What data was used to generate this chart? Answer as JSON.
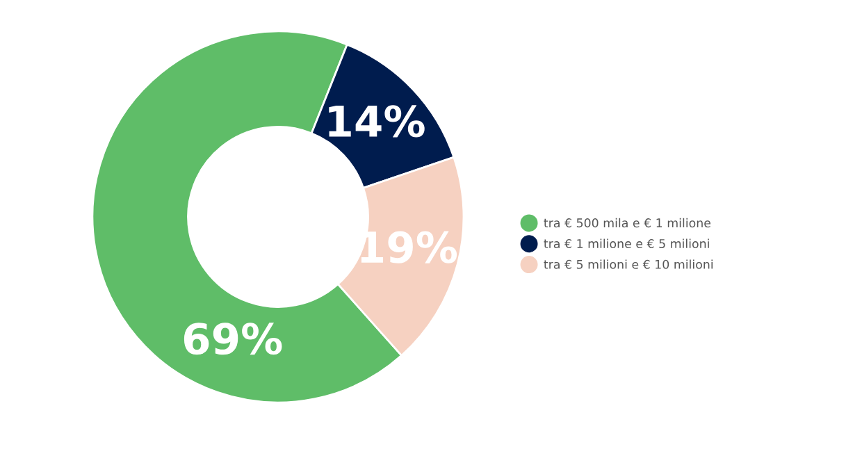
{
  "chart_data": {
    "type": "donut",
    "categories": [
      "tra € 500 mila e € 1 milione",
      "tra € 1 milione e € 5 milioni",
      "tra € 5 milioni e € 10 milioni"
    ],
    "values": [
      69,
      14,
      19
    ],
    "colors": [
      "#5fbd68",
      "#001c4e",
      "#f6d1c1"
    ],
    "value_labels": [
      "69%",
      "14%",
      "19%"
    ],
    "legend": "right"
  }
}
